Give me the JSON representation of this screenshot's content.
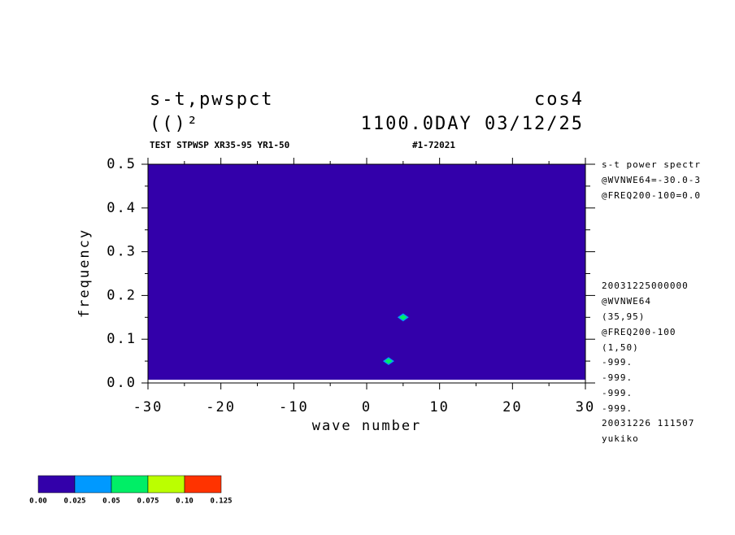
{
  "chart_data": {
    "type": "contour",
    "title": "s-t,pwspct",
    "title_right": "cos4",
    "subtitle": "(()²",
    "subtitle_right": "1100.0DAY 03/12/25",
    "caption": "TEST STPWSP XR35-95 YR1-50",
    "caption_right": "#1-72021",
    "xlabel": "wave number",
    "ylabel": "frequency",
    "xlim": [
      -30,
      30
    ],
    "ylim": [
      0,
      0.5
    ],
    "xticks": [
      -30,
      -20,
      -10,
      0,
      10,
      20,
      30
    ],
    "yticks": [
      {
        "value": 0,
        "label": "0.0"
      },
      0.1,
      0.2,
      0.3,
      0.4,
      0.5
    ],
    "xminorticks": [
      -25,
      -15,
      -5,
      5,
      15,
      25
    ],
    "yminorticks": [
      0.05,
      0.15,
      0.25,
      0.35,
      0.45
    ],
    "background_value": 0,
    "peaks": {
      "x": [
        3,
        5
      ],
      "y": [
        0.05,
        0.15
      ],
      "values": [
        0.07,
        0.07
      ]
    },
    "levels": [
      {
        "value": 0,
        "label": "0.00"
      },
      0.025,
      0.05,
      0.075,
      {
        "value": 0.1,
        "label": "0.10"
      },
      0.125
    ],
    "colors": [
      "#3300aa",
      "#0099ff",
      "#00ee66",
      "#bbff00",
      "#ff3300"
    ],
    "annotations": [
      "s-t power spectr",
      "@WVNWE64=-30.0-3",
      "@FREQ200-100=0.0",
      "20031225000000",
      "@WVNWE64",
      "(35,95)",
      "@FREQ200-100",
      "(1,50)",
      "-999.",
      "-999.",
      "-999.",
      "-999.",
      "20031226 111507",
      "yukiko"
    ]
  }
}
